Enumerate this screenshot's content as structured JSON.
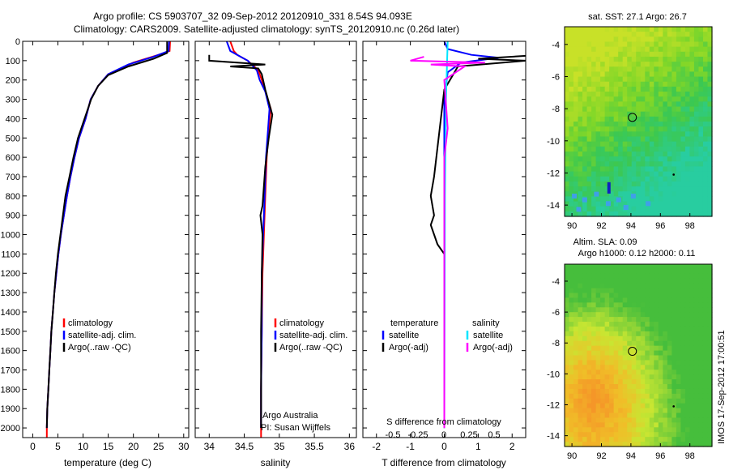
{
  "header": {
    "title_line1": "Argo profile: CS 5903707_32 09-Sep-2012 20120910_331 8.54S 94.093E",
    "title_line2": "Climatology: CARS2009. Satellite-adjusted climatology: synTS_20120910.nc (0.26d later)"
  },
  "side_text": "IMOS 17-Sep-2012 17:00:51",
  "colors": {
    "climatology": "#ff0000",
    "satellite": "#0000ff",
    "argo": "#000000",
    "sal_sat": "#00e5ff",
    "sal_argo": "#ff00ff"
  },
  "chart_data": [
    {
      "type": "line",
      "panel": "temperature",
      "xlabel": "temperature (deg C)",
      "xlim": [
        -2,
        31
      ],
      "ylim": [
        2050,
        0
      ],
      "xticks": [
        0,
        5,
        10,
        15,
        20,
        25,
        30
      ],
      "yticks": [
        0,
        100,
        200,
        300,
        400,
        500,
        600,
        700,
        800,
        900,
        1000,
        1100,
        1200,
        1300,
        1400,
        1500,
        1600,
        1700,
        1800,
        1900,
        2000
      ],
      "legend": [
        "climatology",
        "satellite-adj. clim.",
        "Argo(..raw -QC)"
      ],
      "series": [
        {
          "name": "climatology",
          "values": [
            [
              27.3,
              0
            ],
            [
              27.2,
              50
            ],
            [
              25,
              70
            ],
            [
              20,
              110
            ],
            [
              15,
              170
            ],
            [
              13,
              230
            ],
            [
              11.5,
              300
            ],
            [
              10.5,
              400
            ],
            [
              9.2,
              500
            ],
            [
              8.3,
              600
            ],
            [
              7.5,
              700
            ],
            [
              6.8,
              800
            ],
            [
              6.2,
              900
            ],
            [
              5.6,
              1000
            ],
            [
              5.1,
              1100
            ],
            [
              4.7,
              1200
            ],
            [
              4.3,
              1300
            ],
            [
              4.0,
              1400
            ],
            [
              3.7,
              1500
            ],
            [
              3.5,
              1600
            ],
            [
              3.3,
              1700
            ],
            [
              3.1,
              1800
            ],
            [
              2.9,
              1900
            ],
            [
              2.8,
              2000
            ],
            [
              2.8,
              2050
            ]
          ]
        },
        {
          "name": "satellite-adj. clim.",
          "values": [
            [
              27.1,
              0
            ],
            [
              27.0,
              50
            ],
            [
              24,
              80
            ],
            [
              19,
              120
            ],
            [
              15,
              170
            ],
            [
              13,
              230
            ],
            [
              11.5,
              300
            ],
            [
              10.5,
              400
            ],
            [
              9.2,
              500
            ],
            [
              8.3,
              600
            ],
            [
              7.5,
              700
            ],
            [
              6.8,
              800
            ],
            [
              6.2,
              900
            ],
            [
              5.6,
              1000
            ],
            [
              5.1,
              1100
            ],
            [
              4.7,
              1200
            ],
            [
              4.3,
              1300
            ],
            [
              4.0,
              1400
            ],
            [
              3.7,
              1500
            ],
            [
              3.5,
              1600
            ],
            [
              3.3,
              1700
            ],
            [
              3.1,
              1800
            ],
            [
              2.9,
              1900
            ],
            [
              2.8,
              2000
            ]
          ]
        },
        {
          "name": "Argo(..raw -QC)",
          "values": [
            [
              26.7,
              0
            ],
            [
              26.7,
              60
            ],
            [
              24,
              90
            ],
            [
              19,
              130
            ],
            [
              15,
              175
            ],
            [
              13,
              230
            ],
            [
              11.6,
              300
            ],
            [
              10.3,
              400
            ],
            [
              9.0,
              500
            ],
            [
              8.1,
              600
            ],
            [
              7.3,
              700
            ],
            [
              6.5,
              800
            ],
            [
              6.0,
              900
            ],
            [
              5.5,
              1000
            ],
            [
              5.0,
              1100
            ],
            [
              4.6,
              1200
            ],
            [
              4.3,
              1300
            ],
            [
              4.0,
              1400
            ],
            [
              3.7,
              1500
            ],
            [
              3.5,
              1600
            ],
            [
              3.3,
              1700
            ],
            [
              3.1,
              1800
            ],
            [
              2.9,
              1900
            ],
            [
              2.8,
              2000
            ]
          ]
        }
      ]
    },
    {
      "type": "line",
      "panel": "salinity",
      "xlabel": "salinity",
      "xlim": [
        33.8,
        36.1
      ],
      "ylim": [
        2050,
        0
      ],
      "xticks": [
        34,
        34.5,
        35,
        35.5,
        36
      ],
      "legend": [
        "climatology",
        "satellite-adj. clim.",
        "Argo(..raw -QC)"
      ],
      "annotation": [
        "Argo Australia",
        "PI: Susan Wijffels"
      ],
      "series": [
        {
          "name": "climatology",
          "values": [
            [
              34.3,
              0
            ],
            [
              34.35,
              50
            ],
            [
              34.4,
              70
            ],
            [
              34.55,
              100
            ],
            [
              34.7,
              150
            ],
            [
              34.75,
              200
            ],
            [
              34.8,
              260
            ],
            [
              34.88,
              350
            ],
            [
              34.85,
              450
            ],
            [
              34.82,
              600
            ],
            [
              34.8,
              800
            ],
            [
              34.78,
              1000
            ],
            [
              34.76,
              1200
            ],
            [
              34.75,
              1500
            ],
            [
              34.74,
              1800
            ],
            [
              34.74,
              2050
            ]
          ]
        },
        {
          "name": "satellite-adj. clim.",
          "values": [
            [
              34.25,
              0
            ],
            [
              34.3,
              50
            ],
            [
              34.4,
              70
            ],
            [
              34.55,
              100
            ],
            [
              34.68,
              150
            ],
            [
              34.72,
              200
            ],
            [
              34.8,
              260
            ],
            [
              34.86,
              350
            ],
            [
              34.84,
              450
            ],
            [
              34.81,
              600
            ],
            [
              34.79,
              800
            ],
            [
              34.77,
              1000
            ],
            [
              34.75,
              1200
            ],
            [
              34.75,
              1500
            ],
            [
              34.74,
              1800
            ],
            [
              34.74,
              2000
            ]
          ]
        },
        {
          "name": "Argo(..raw -QC)",
          "values": [
            [
              34.0,
              70
            ],
            [
              34.0,
              100
            ],
            [
              34.4,
              110
            ],
            [
              34.8,
              120
            ],
            [
              34.3,
              130
            ],
            [
              34.7,
              140
            ],
            [
              34.75,
              170
            ],
            [
              34.8,
              250
            ],
            [
              34.9,
              380
            ],
            [
              34.85,
              500
            ],
            [
              34.8,
              650
            ],
            [
              34.76,
              850
            ],
            [
              34.73,
              900
            ],
            [
              34.76,
              1000
            ],
            [
              34.75,
              1200
            ],
            [
              34.74,
              1500
            ],
            [
              34.74,
              1800
            ],
            [
              34.74,
              2000
            ]
          ]
        }
      ]
    },
    {
      "type": "line",
      "panel": "difference",
      "xlabel": "T difference from climatology",
      "top_label": "S difference from climatology",
      "xlim": [
        -2.4,
        2.4
      ],
      "ylim": [
        2050,
        0
      ],
      "xticks": [
        -2,
        -1,
        0,
        1,
        2
      ],
      "top_ticks": [
        "-0.5",
        "-0.25",
        "0",
        "0.25",
        "0.5"
      ],
      "legend": {
        "col1_title": "temperature",
        "col2_title": "salinity",
        "items": [
          "satellite",
          "Argo(-adj)",
          "satellite",
          "Argo(-adj)"
        ]
      },
      "series": [
        {
          "name": "temperature satellite",
          "values": [
            [
              0,
              0
            ],
            [
              0.1,
              40
            ],
            [
              0.8,
              70
            ],
            [
              1.6,
              85
            ],
            [
              0.5,
              110
            ],
            [
              0.1,
              160
            ],
            [
              0,
              300
            ],
            [
              0,
              2000
            ]
          ]
        },
        {
          "name": "temperature Argo(-adj)",
          "values": [
            [
              2.4,
              75
            ],
            [
              1.0,
              90
            ],
            [
              2.4,
              100
            ],
            [
              0.4,
              130
            ],
            [
              0.3,
              160
            ],
            [
              0,
              250
            ],
            [
              -0.1,
              400
            ],
            [
              -0.3,
              700
            ],
            [
              -0.4,
              800
            ],
            [
              -0.3,
              900
            ],
            [
              -0.4,
              950
            ],
            [
              -0.2,
              1050
            ],
            [
              0,
              1100
            ],
            [
              0,
              2000
            ]
          ]
        },
        {
          "name": "salinity satellite",
          "values": [
            [
              0.1,
              0
            ],
            [
              0.05,
              300
            ],
            [
              0.02,
              800
            ],
            [
              0,
              2000
            ]
          ]
        },
        {
          "name": "salinity Argo(-adj)",
          "values": [
            [
              -0.6,
              80
            ],
            [
              -1.0,
              100
            ],
            [
              1.2,
              110
            ],
            [
              -0.4,
              120
            ],
            [
              0.6,
              130
            ],
            [
              0,
              200
            ],
            [
              0.1,
              450
            ],
            [
              0,
              600
            ],
            [
              0,
              900
            ],
            [
              0,
              1100
            ],
            [
              0,
              2000
            ]
          ]
        }
      ]
    },
    {
      "type": "heatmap",
      "panel": "sst-map",
      "title": "sat. SST: 27.1  Argo: 26.7",
      "xticks": [
        90,
        92,
        94,
        96,
        98
      ],
      "yticks": [
        -4,
        -6,
        -8,
        -10,
        -12,
        -14
      ],
      "xlim": [
        89.5,
        99.5
      ],
      "ylim": [
        -14.7,
        -2.9
      ],
      "marker": [
        94.1,
        -8.54
      ]
    },
    {
      "type": "heatmap",
      "panel": "sla-map",
      "title": [
        "Altim. SLA: 0.09",
        "Argo h1000: 0.12 h2000: 0.11"
      ],
      "xticks": [
        90,
        92,
        94,
        96,
        98
      ],
      "yticks": [
        -4,
        -6,
        -8,
        -10,
        -12,
        -14
      ],
      "xlim": [
        89.5,
        99.5
      ],
      "ylim": [
        -14.7,
        -2.9
      ],
      "marker": [
        94.1,
        -8.54
      ]
    }
  ]
}
